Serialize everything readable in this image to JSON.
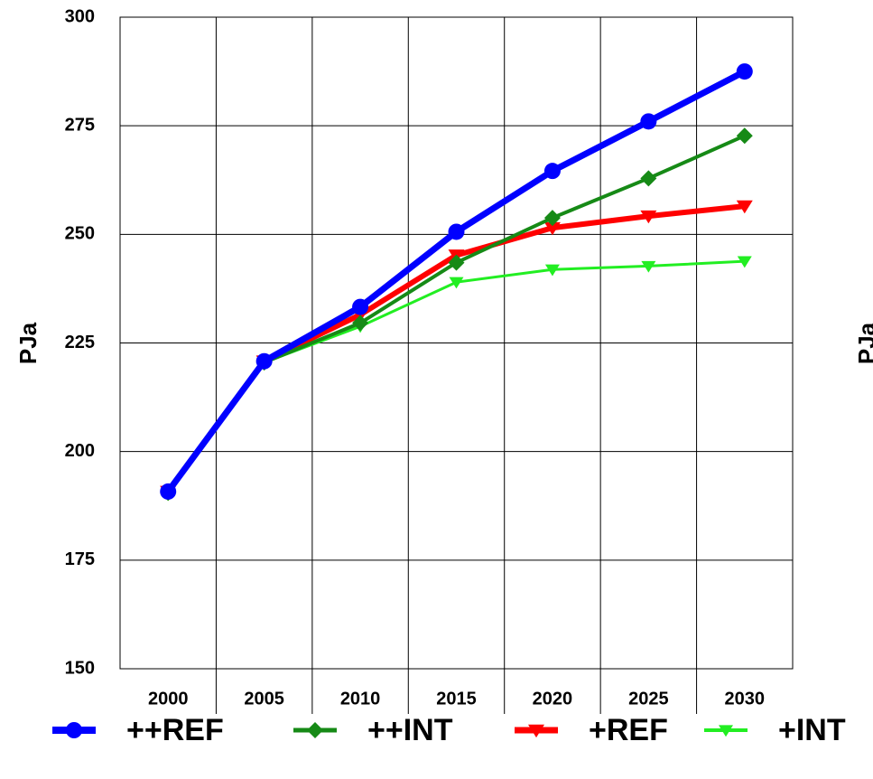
{
  "chart_data": {
    "type": "line",
    "ylabel": "PJa",
    "categories": [
      "2000",
      "2005",
      "2010",
      "2015",
      "2020",
      "2025",
      "2030"
    ],
    "series": [
      {
        "name": "++REF",
        "color": "#0000ff",
        "marker": "circle",
        "values": [
          190.8,
          220.8,
          233.3,
          250.6,
          264.6,
          276,
          287.5
        ]
      },
      {
        "name": "++INT",
        "color": "#168a16",
        "marker": "diamond",
        "values": [
          190.5,
          220.5,
          229.6,
          243.5,
          253.8,
          262.9,
          272.7
        ]
      },
      {
        "name": "+REF",
        "color": "#ff0000",
        "marker": "triangle-down",
        "values": [
          190.8,
          220.8,
          231.5,
          245.2,
          251.5,
          254.2,
          256.5
        ]
      },
      {
        "name": "+INT",
        "color": "#22ee22",
        "marker": "triangle-down",
        "values": [
          190.5,
          220.5,
          228.8,
          239,
          241.9,
          242.7,
          243.8
        ]
      }
    ],
    "ylim": [
      150,
      300
    ],
    "yticks": [
      150,
      175,
      200,
      225,
      250,
      275,
      300
    ],
    "grid": true
  },
  "cropped_text": "PJa"
}
